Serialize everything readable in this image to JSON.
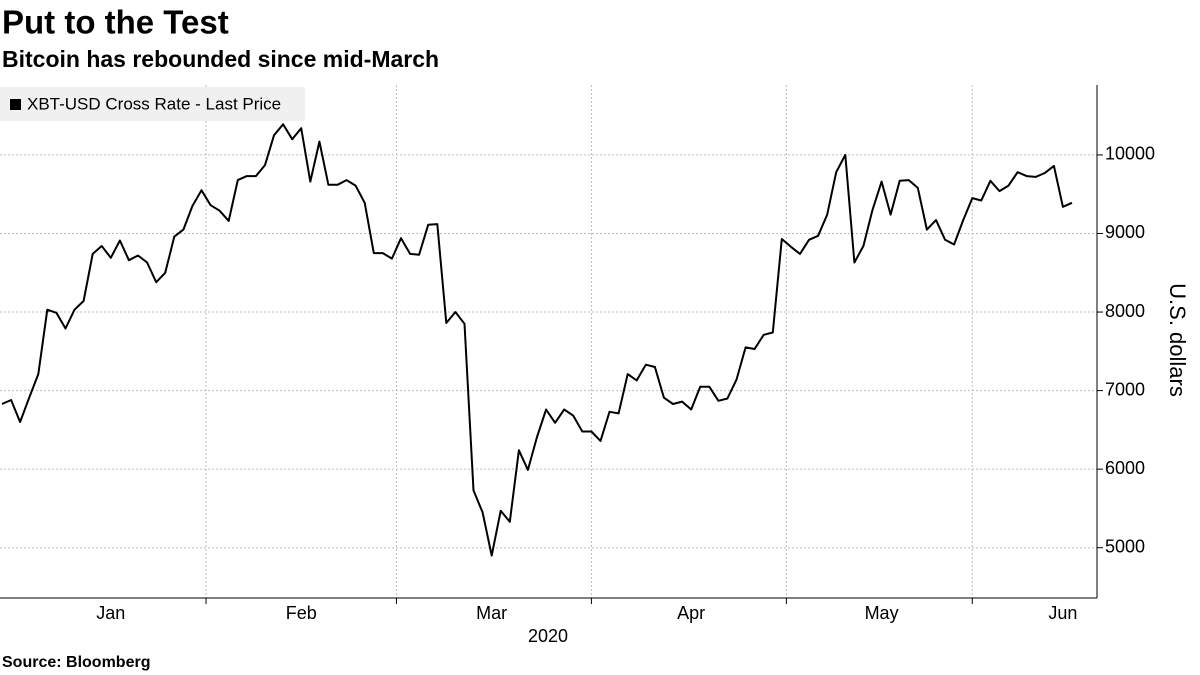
{
  "chart_data": {
    "type": "line",
    "title": "Put to the Test",
    "subtitle": "Bitcoin has rebounded since mid-March",
    "source": "Source: Bloomberg",
    "ylabel": "U.S. dollars",
    "xlabel": "2020",
    "categories": [
      null,
      null,
      null,
      null,
      null,
      null,
      null,
      null,
      null,
      null,
      null,
      null,
      "Jan",
      null,
      null,
      null,
      null,
      null,
      null,
      null,
      null,
      null,
      null,
      null,
      null,
      null,
      null,
      null,
      null,
      null,
      null,
      null,
      null,
      "Feb",
      null,
      null,
      null,
      null,
      null,
      null,
      null,
      null,
      null,
      null,
      null,
      null,
      null,
      null,
      null,
      null,
      null,
      null,
      null,
      null,
      "Mar",
      null,
      null,
      null,
      null,
      null,
      null,
      null,
      null,
      null,
      null,
      null,
      null,
      null,
      null,
      null,
      null,
      null,
      null,
      null,
      null,
      null,
      "Apr",
      null,
      null,
      null,
      null,
      null,
      null,
      null,
      null,
      null,
      null,
      null,
      null,
      null,
      null,
      null,
      null,
      null,
      null,
      null,
      null,
      "May",
      null,
      null,
      null,
      null,
      null,
      null,
      null,
      null,
      null,
      null,
      null,
      null,
      null,
      null,
      null,
      null,
      null,
      null,
      null,
      "Jun",
      null
    ],
    "series": [
      {
        "name": "XBT-USD Cross Rate - Last Price",
        "color": "#000000",
        "values": [
          6830,
          6880,
          6600,
          6910,
          7210,
          8030,
          7990,
          7790,
          8030,
          8140,
          8740,
          8840,
          8690,
          8910,
          8660,
          8720,
          8630,
          8380,
          8500,
          8960,
          9050,
          9350,
          9550,
          9360,
          9290,
          9160,
          9680,
          9730,
          9730,
          9870,
          10250,
          10390,
          10200,
          10340,
          9660,
          10170,
          9620,
          9620,
          9680,
          9610,
          9390,
          8750,
          8750,
          8680,
          8940,
          8740,
          8730,
          9110,
          9120,
          7860,
          8000,
          7850,
          5730,
          5450,
          4900,
          5470,
          5330,
          6240,
          5990,
          6410,
          6760,
          6590,
          6760,
          6680,
          6480,
          6480,
          6360,
          6730,
          6710,
          7210,
          7130,
          7330,
          7300,
          6910,
          6830,
          6860,
          6760,
          7050,
          7050,
          6870,
          6900,
          7140,
          7550,
          7530,
          7710,
          7740,
          8930,
          8830,
          8740,
          8920,
          8970,
          9240,
          9780,
          10000,
          8630,
          8840,
          9300,
          9660,
          9240,
          9670,
          9680,
          9580,
          9050,
          9170,
          8920,
          8860,
          9170,
          9450,
          9420,
          9670,
          9540,
          9610,
          9780,
          9730,
          9720,
          9770,
          9860,
          9340,
          9390
        ]
      }
    ],
    "ylim": [
      4360,
      10890
    ],
    "yticks": [
      5000,
      6000,
      7000,
      8000,
      9000,
      10000
    ],
    "grid": true,
    "legend": "top-left"
  }
}
